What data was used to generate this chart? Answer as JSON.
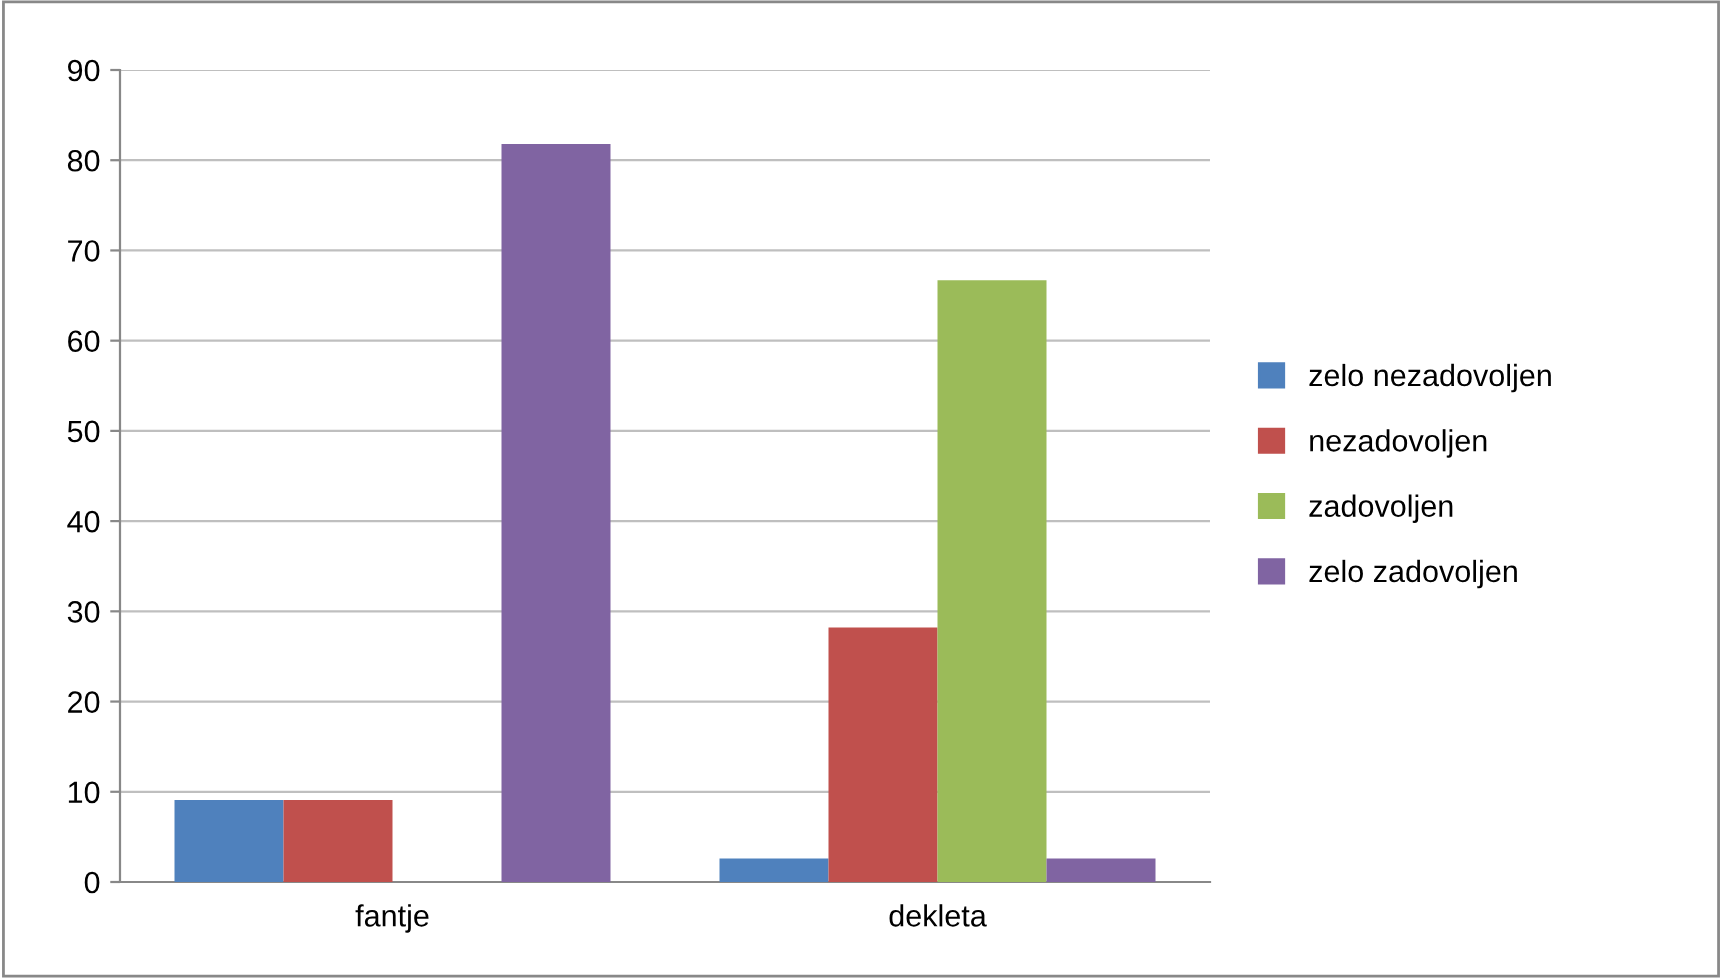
{
  "chart_data": {
    "type": "bar",
    "categories": [
      "fantje",
      "dekleta"
    ],
    "series": [
      {
        "name": "zelo nezadovoljen",
        "color": "#4f81bd",
        "values": [
          9.1,
          2.6
        ]
      },
      {
        "name": "nezadovoljen",
        "color": "#c0504d",
        "values": [
          9.1,
          28.2
        ]
      },
      {
        "name": "zadovoljen",
        "color": "#9bbb59",
        "values": [
          0,
          66.7
        ]
      },
      {
        "name": "zelo zadovoljen",
        "color": "#8064a2",
        "values": [
          81.8,
          2.6
        ]
      }
    ],
    "ylim": [
      0,
      90
    ],
    "yticks": [
      0,
      10,
      20,
      30,
      40,
      50,
      60,
      70,
      80,
      90
    ],
    "grid": "y",
    "legend": "right"
  }
}
